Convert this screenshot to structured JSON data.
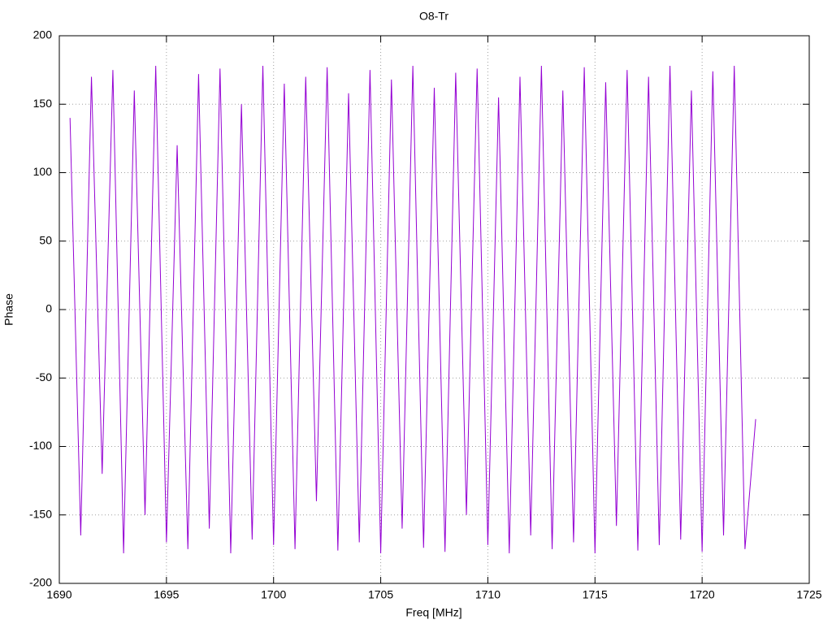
{
  "chart_data": {
    "type": "line",
    "title": "O8-Tr",
    "x_label": "Freq [MHz]",
    "y_label": "Phase",
    "x": [
      1690.5,
      1691,
      1691.5,
      1692,
      1692.5,
      1693,
      1693.5,
      1694,
      1694.5,
      1695,
      1695.5,
      1696,
      1696.5,
      1697,
      1697.5,
      1698,
      1698.5,
      1699,
      1699.5,
      1700,
      1700.5,
      1701,
      1701.5,
      1702,
      1702.5,
      1703,
      1703.5,
      1704,
      1704.5,
      1705,
      1705.5,
      1706,
      1706.5,
      1707,
      1707.5,
      1708,
      1708.5,
      1709,
      1709.5,
      1710,
      1710.5,
      1711,
      1711.5,
      1712,
      1712.5,
      1713,
      1713.5,
      1714,
      1714.5,
      1715,
      1715.5,
      1716,
      1716.5,
      1717,
      1717.5,
      1718,
      1718.5,
      1719,
      1719.5,
      1720,
      1720.5,
      1721,
      1721.5,
      1722,
      1722.5
    ],
    "values": [
      140,
      -165,
      170,
      -120,
      175,
      -178,
      160,
      -150,
      178,
      -170,
      120,
      -175,
      172,
      -160,
      176,
      -178,
      150,
      -168,
      178,
      -172,
      165,
      -175,
      170,
      -140,
      177,
      -176,
      158,
      -170,
      175,
      -178,
      168,
      -160,
      178,
      -174,
      162,
      -177,
      173,
      -150,
      176,
      -172,
      155,
      -178,
      170,
      -165,
      178,
      -175,
      160,
      -170,
      177,
      -178,
      166,
      -158,
      175,
      -176,
      170,
      -172,
      178,
      -168,
      160,
      -177,
      174,
      -165,
      178,
      -175,
      -80
    ],
    "color": "#9400d3",
    "xlim": [
      1690,
      1725
    ],
    "xticks": [
      1690,
      1695,
      1700,
      1705,
      1710,
      1715,
      1720,
      1725
    ],
    "ylim": [
      -200,
      200
    ],
    "yticks": [
      -200,
      -150,
      -100,
      -50,
      0,
      50,
      100,
      150,
      200
    ],
    "grid": true
  }
}
